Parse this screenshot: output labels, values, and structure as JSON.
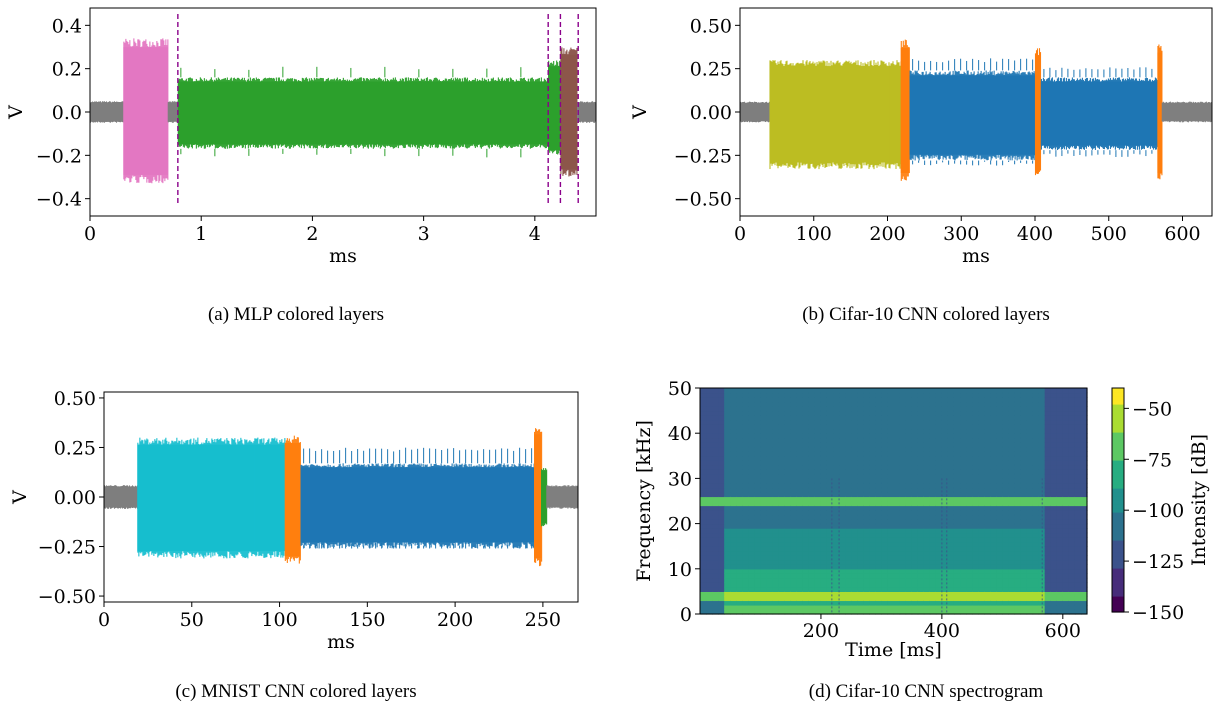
{
  "chart_data": [
    {
      "type": "line",
      "caption": "(a) MLP colored layers",
      "xlabel": "ms",
      "ylabel": "V",
      "xlim": [
        0,
        4.55
      ],
      "ylim": [
        -0.48,
        0.48
      ],
      "xticks": [
        0,
        1,
        2,
        3,
        4
      ],
      "xtick_labels": [
        "0",
        "1",
        "2",
        "3",
        "4"
      ],
      "yticks": [
        -0.4,
        -0.2,
        0.0,
        0.2,
        0.4
      ],
      "ytick_labels": [
        "−0.4",
        "−0.2",
        "0.0",
        "0.2",
        "0.4"
      ],
      "segments": [
        {
          "start": 0.0,
          "end": 0.3,
          "amp_low": -0.05,
          "amp_high": 0.05,
          "color": "#7f7f7f"
        },
        {
          "start": 0.3,
          "end": 0.7,
          "amp_low": -0.33,
          "amp_high": 0.34,
          "color": "#e377c2"
        },
        {
          "start": 0.7,
          "end": 0.79,
          "amp_low": -0.05,
          "amp_high": 0.05,
          "color": "#7f7f7f"
        },
        {
          "start": 0.79,
          "end": 4.12,
          "amp_low": -0.17,
          "amp_high": 0.16,
          "color": "#2ca02c",
          "spikes": 0.21
        },
        {
          "start": 4.12,
          "end": 4.23,
          "amp_low": -0.2,
          "amp_high": 0.24,
          "color": "#2ca02c"
        },
        {
          "start": 4.23,
          "end": 4.38,
          "amp_low": -0.3,
          "amp_high": 0.3,
          "color": "#8c564b"
        },
        {
          "start": 4.38,
          "end": 4.55,
          "amp_low": -0.05,
          "amp_high": 0.05,
          "color": "#7f7f7f"
        }
      ],
      "vlines": [
        0.79,
        4.12,
        4.23,
        4.39
      ],
      "vline_color": "#8b008b"
    },
    {
      "type": "line",
      "caption": "(b) Cifar-10 CNN colored layers",
      "xlabel": "ms",
      "ylabel": "V",
      "xlim": [
        0,
        640
      ],
      "ylim": [
        -0.6,
        0.6
      ],
      "xticks": [
        0,
        100,
        200,
        300,
        400,
        500,
        600
      ],
      "xtick_labels": [
        "0",
        "100",
        "200",
        "300",
        "400",
        "500",
        "600"
      ],
      "yticks": [
        -0.5,
        -0.25,
        0.0,
        0.25,
        0.5
      ],
      "ytick_labels": [
        "−0.50",
        "−0.25",
        "0.00",
        "0.25",
        "0.50"
      ],
      "segments": [
        {
          "start": 0,
          "end": 40,
          "amp_low": -0.06,
          "amp_high": 0.06,
          "color": "#7f7f7f"
        },
        {
          "start": 40,
          "end": 218,
          "amp_low": -0.33,
          "amp_high": 0.3,
          "color": "#bcbd22"
        },
        {
          "start": 218,
          "end": 230,
          "amp_low": -0.4,
          "amp_high": 0.42,
          "color": "#ff7f0e"
        },
        {
          "start": 230,
          "end": 400,
          "amp_low": -0.28,
          "amp_high": 0.24,
          "color": "#1f77b4",
          "spikes": 0.31
        },
        {
          "start": 400,
          "end": 408,
          "amp_low": -0.38,
          "amp_high": 0.37,
          "color": "#ff7f0e"
        },
        {
          "start": 408,
          "end": 566,
          "amp_low": -0.22,
          "amp_high": 0.2,
          "color": "#1f77b4",
          "spikes": 0.26
        },
        {
          "start": 566,
          "end": 572,
          "amp_low": -0.4,
          "amp_high": 0.39,
          "color": "#ff7f0e"
        },
        {
          "start": 572,
          "end": 640,
          "amp_low": -0.06,
          "amp_high": 0.06,
          "color": "#7f7f7f"
        }
      ]
    },
    {
      "type": "line",
      "caption": "(c) MNIST CNN colored layers",
      "xlabel": "ms",
      "ylabel": "V",
      "xlim": [
        0,
        270
      ],
      "ylim": [
        -0.53,
        0.53
      ],
      "xticks": [
        0,
        50,
        100,
        150,
        200,
        250
      ],
      "xtick_labels": [
        "0",
        "50",
        "100",
        "150",
        "200",
        "250"
      ],
      "yticks": [
        -0.5,
        -0.25,
        0.0,
        0.25,
        0.5
      ],
      "ytick_labels": [
        "−0.50",
        "−0.25",
        "0.00",
        "0.25",
        "0.50"
      ],
      "segments": [
        {
          "start": 0,
          "end": 19,
          "amp_low": -0.06,
          "amp_high": 0.06,
          "color": "#7f7f7f"
        },
        {
          "start": 19,
          "end": 103,
          "amp_low": -0.31,
          "amp_high": 0.3,
          "color": "#17becf"
        },
        {
          "start": 103,
          "end": 112,
          "amp_low": -0.34,
          "amp_high": 0.31,
          "color": "#ff7f0e"
        },
        {
          "start": 112,
          "end": 245,
          "amp_low": -0.26,
          "amp_high": 0.17,
          "color": "#1f77b4",
          "spikes": 0.25
        },
        {
          "start": 245,
          "end": 249,
          "amp_low": -0.35,
          "amp_high": 0.36,
          "color": "#ff7f0e"
        },
        {
          "start": 249,
          "end": 252,
          "amp_low": -0.15,
          "amp_high": 0.15,
          "color": "#2ca02c"
        },
        {
          "start": 252,
          "end": 270,
          "amp_low": -0.06,
          "amp_high": 0.06,
          "color": "#7f7f7f"
        }
      ]
    },
    {
      "type": "heatmap",
      "caption": "(d) Cifar-10 CNN spectrogram",
      "xlabel": "Time [ms]",
      "ylabel": "Frequency [kHz]",
      "colorbar_label": "Intensity [dB]",
      "xlim": [
        0,
        640
      ],
      "ylim": [
        0,
        50
      ],
      "xticks": [
        200,
        400,
        600
      ],
      "xtick_labels": [
        "200",
        "400",
        "600"
      ],
      "yticks": [
        0,
        10,
        20,
        30,
        40,
        50
      ],
      "ytick_labels": [
        "0",
        "10",
        "20",
        "30",
        "40",
        "50"
      ],
      "clim": [
        -150,
        -40
      ],
      "cticks": [
        -150,
        -125,
        -100,
        -75,
        -50
      ],
      "ctick_labels": [
        "−150",
        "−125",
        "−100",
        "−75",
        "−50"
      ],
      "colormap": "viridis",
      "active_time_range": [
        40,
        575
      ],
      "tones_khz": [
        4,
        25
      ],
      "layer_boundaries_ms": [
        218,
        230,
        400,
        408,
        566
      ]
    }
  ]
}
